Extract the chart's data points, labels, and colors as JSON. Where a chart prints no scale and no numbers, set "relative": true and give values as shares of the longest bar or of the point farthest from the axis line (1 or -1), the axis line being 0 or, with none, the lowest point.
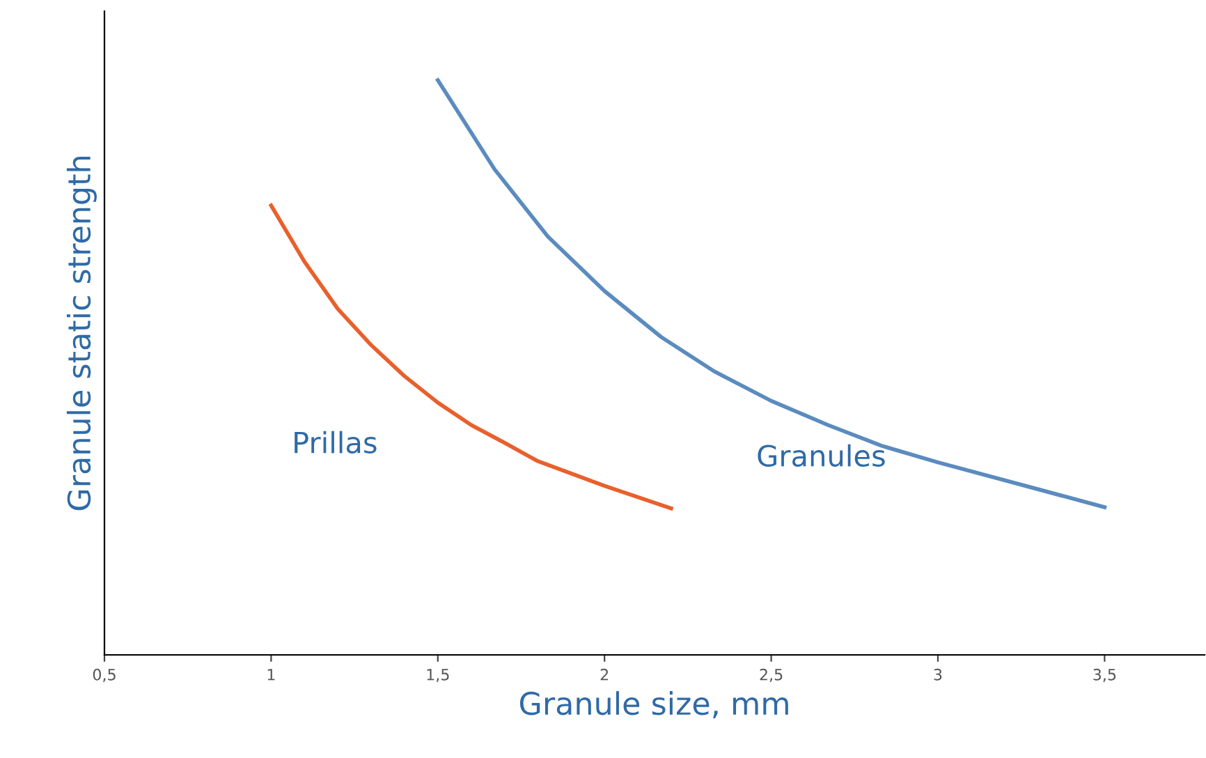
{
  "chart_data": {
    "type": "line",
    "relative": true,
    "xlabel": "Granule size, mm",
    "ylabel": "Granule static strength",
    "xlim": [
      0.5,
      3.8
    ],
    "xticks": [
      {
        "value": 0.5,
        "label": "0,5"
      },
      1,
      {
        "value": 1.5,
        "label": "1,5"
      },
      2,
      {
        "value": 2.5,
        "label": "2,5"
      },
      3,
      {
        "value": 3.5,
        "label": "3,5"
      }
    ],
    "grid": false,
    "legend": false,
    "marker": "none",
    "line_style": "solid",
    "series": [
      {
        "name": "Prillas",
        "color": "#e8602c",
        "x": [
          1.0,
          1.1,
          1.2,
          1.3,
          1.4,
          1.5,
          1.6,
          1.7,
          1.8,
          2.0,
          2.2
        ],
        "values": [
          0.782,
          0.684,
          0.602,
          0.539,
          0.485,
          0.439,
          0.4,
          0.369,
          0.337,
          0.294,
          0.255
        ]
      },
      {
        "name": "Granules",
        "color": "#5b8bbf",
        "x": [
          1.5,
          1.67,
          1.83,
          2.0,
          2.17,
          2.33,
          2.5,
          2.67,
          2.83,
          3.0,
          3.25,
          3.5
        ],
        "values": [
          1.0,
          0.845,
          0.728,
          0.633,
          0.553,
          0.493,
          0.442,
          0.4,
          0.364,
          0.335,
          0.296,
          0.257
        ]
      }
    ]
  }
}
